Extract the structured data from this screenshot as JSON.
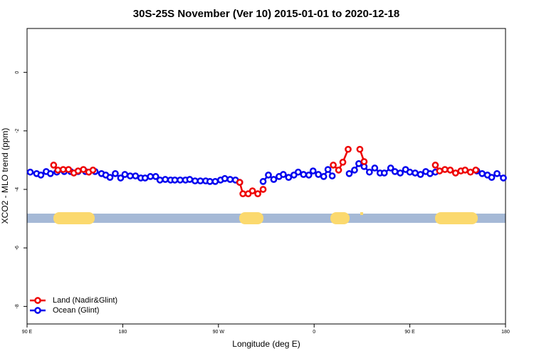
{
  "chart_data": {
    "type": "line",
    "title": "30S-25S November (Ver 10)   2015-01-01 to 2020-12-18",
    "xlabel": "Longitude (deg E)",
    "ylabel": "XCO2 - MLO trend (ppm)",
    "xlim": [
      90,
      540
    ],
    "xticks": [
      {
        "value": 90,
        "label": "90 E"
      },
      {
        "value": 180,
        "label": "180"
      },
      {
        "value": 270,
        "label": "90 W"
      },
      {
        "value": 360,
        "label": "0"
      },
      {
        "value": 450,
        "label": "90 E"
      },
      {
        "value": 540,
        "label": "180"
      }
    ],
    "ylim": [
      -8.6,
      1.5
    ],
    "yticks": [
      0,
      -2,
      -4,
      -6,
      -8
    ],
    "legend": "lower left",
    "series": [
      {
        "name": "Ocean (Glint)",
        "color": "#0000ee",
        "x": [
          93,
          99,
          103,
          108,
          112,
          118,
          125,
          131,
          138,
          145,
          154,
          160,
          164,
          168,
          173,
          178,
          182,
          187,
          192,
          197,
          201,
          206,
          211,
          215,
          220,
          225,
          229,
          234,
          239,
          243,
          248,
          253,
          258,
          262,
          267,
          272,
          276,
          281,
          286,
          290,
          300,
          312,
          317,
          322,
          327,
          331,
          336,
          341,
          345,
          350,
          355,
          359,
          364,
          369,
          373,
          377,
          385,
          393,
          398,
          402,
          407,
          412,
          417,
          422,
          426,
          432,
          436,
          441,
          446,
          450,
          455,
          460,
          465,
          469,
          474,
          490,
          513,
          518,
          523,
          527,
          532,
          538
        ],
        "values": [
          -3.41,
          -3.46,
          -3.51,
          -3.39,
          -3.46,
          -3.41,
          -3.39,
          -3.39,
          -3.39,
          -3.39,
          -3.39,
          -3.46,
          -3.51,
          -3.59,
          -3.46,
          -3.61,
          -3.49,
          -3.54,
          -3.54,
          -3.61,
          -3.61,
          -3.56,
          -3.56,
          -3.68,
          -3.66,
          -3.68,
          -3.68,
          -3.68,
          -3.68,
          -3.66,
          -3.71,
          -3.71,
          -3.71,
          -3.73,
          -3.73,
          -3.68,
          -3.63,
          -3.66,
          -3.68,
          -3.76,
          null,
          -3.73,
          -3.51,
          -3.66,
          -3.56,
          -3.49,
          -3.59,
          -3.51,
          -3.41,
          -3.49,
          -3.51,
          -3.37,
          -3.49,
          -3.56,
          -3.32,
          -3.54,
          null,
          -3.46,
          -3.34,
          -3.12,
          -3.22,
          -3.41,
          -3.27,
          -3.44,
          -3.44,
          -3.27,
          -3.39,
          -3.44,
          -3.32,
          -3.41,
          -3.44,
          -3.49,
          -3.39,
          -3.46,
          -3.41,
          null,
          -3.37,
          -3.46,
          -3.51,
          -3.59,
          -3.46,
          -3.61
        ]
      },
      {
        "name": "Land (Nadir&Glint)",
        "color": "#ee0000",
        "x": [
          115,
          119,
          124,
          129,
          134,
          138,
          143,
          148,
          152,
          200,
          290,
          293,
          298,
          302,
          307,
          312,
          340,
          378,
          383,
          387,
          392,
          397,
          403,
          407,
          450,
          474,
          478,
          483,
          488,
          493,
          498,
          502,
          507,
          512
        ],
        "values": [
          -3.17,
          -3.34,
          -3.32,
          -3.32,
          -3.44,
          -3.37,
          -3.32,
          -3.41,
          -3.34,
          null,
          -3.76,
          -4.15,
          -4.15,
          -4.05,
          -4.15,
          -4.0,
          null,
          -3.17,
          -3.34,
          -3.07,
          -2.63,
          null,
          -2.63,
          -3.05,
          null,
          -3.17,
          -3.37,
          -3.32,
          -3.34,
          -3.44,
          -3.37,
          -3.34,
          -3.41,
          -3.34
        ]
      }
    ]
  }
}
